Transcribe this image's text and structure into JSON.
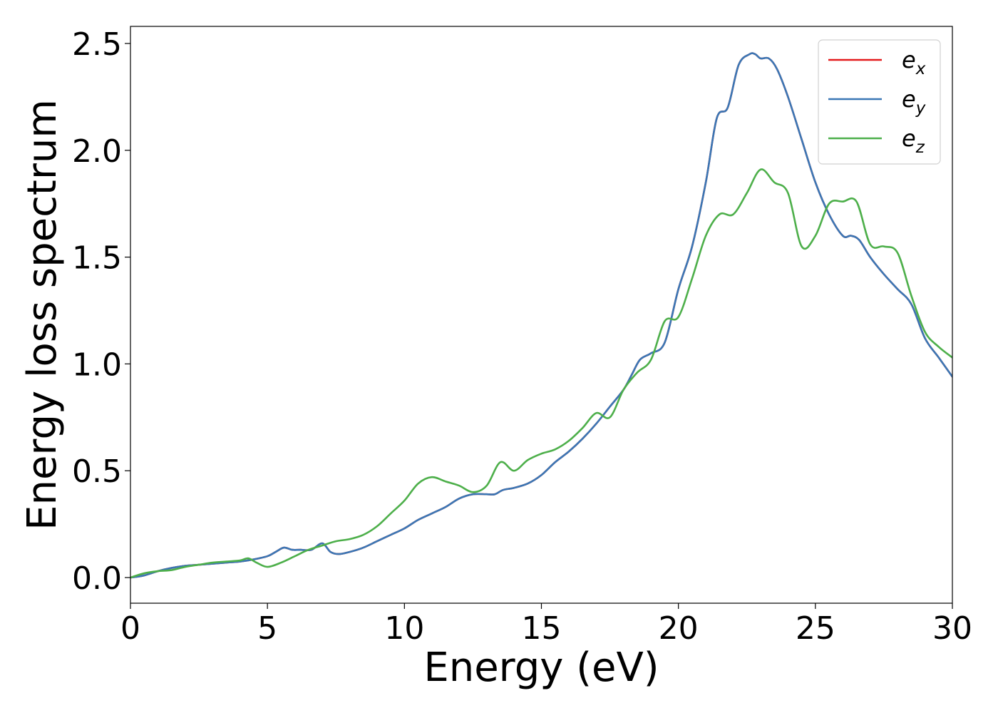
{
  "chart_data": {
    "type": "line",
    "title": "",
    "xlabel": "Energy (eV)",
    "ylabel": "Energy loss spectrum",
    "xlim": [
      0,
      30
    ],
    "ylim": [
      -0.12,
      2.58
    ],
    "xticks": [
      0,
      5,
      10,
      15,
      20,
      25,
      30
    ],
    "yticks": [
      0.0,
      0.5,
      1.0,
      1.5,
      2.0,
      2.5
    ],
    "xtick_labels": [
      "0",
      "5",
      "10",
      "15",
      "20",
      "25",
      "30"
    ],
    "ytick_labels": [
      "0.0",
      "0.5",
      "1.0",
      "1.5",
      "2.0",
      "2.5"
    ],
    "grid": false,
    "legend_position": "top-right",
    "series": [
      {
        "name": "e_x",
        "color": "#e41a1c",
        "x": [
          0,
          0.5,
          1,
          1.5,
          2,
          2.5,
          3,
          3.5,
          4,
          4.5,
          5,
          5.3,
          5.6,
          5.9,
          6.2,
          6.6,
          7.0,
          7.3,
          7.6,
          8.0,
          8.5,
          9.0,
          9.5,
          10.0,
          10.5,
          11.0,
          11.5,
          12.0,
          12.5,
          13.0,
          13.3,
          13.6,
          14.0,
          14.5,
          15.0,
          15.5,
          16.0,
          16.5,
          17.0,
          17.5,
          18.0,
          18.3,
          18.6,
          19.0,
          19.5,
          20.0,
          20.5,
          21.0,
          21.4,
          21.8,
          22.2,
          22.6,
          22.8,
          23.0,
          23.3,
          23.6,
          24.0,
          24.5,
          25.0,
          25.5,
          26.0,
          26.3,
          26.6,
          27.0,
          27.5,
          28.0,
          28.5,
          29.0,
          29.5,
          30.0
        ],
        "y": [
          0.0,
          0.01,
          0.03,
          0.045,
          0.055,
          0.06,
          0.065,
          0.07,
          0.075,
          0.085,
          0.1,
          0.12,
          0.14,
          0.13,
          0.13,
          0.13,
          0.16,
          0.12,
          0.11,
          0.12,
          0.14,
          0.17,
          0.2,
          0.23,
          0.27,
          0.3,
          0.33,
          0.37,
          0.39,
          0.39,
          0.39,
          0.41,
          0.42,
          0.44,
          0.48,
          0.54,
          0.59,
          0.65,
          0.72,
          0.8,
          0.88,
          0.95,
          1.02,
          1.05,
          1.1,
          1.35,
          1.55,
          1.85,
          2.15,
          2.2,
          2.4,
          2.45,
          2.45,
          2.43,
          2.43,
          2.38,
          2.25,
          2.05,
          1.85,
          1.7,
          1.6,
          1.6,
          1.58,
          1.5,
          1.42,
          1.35,
          1.28,
          1.12,
          1.03,
          0.94
        ]
      },
      {
        "name": "e_y",
        "color": "#3a77b5",
        "x": [
          0,
          0.5,
          1,
          1.5,
          2,
          2.5,
          3,
          3.5,
          4,
          4.5,
          5,
          5.3,
          5.6,
          5.9,
          6.2,
          6.6,
          7.0,
          7.3,
          7.6,
          8.0,
          8.5,
          9.0,
          9.5,
          10.0,
          10.5,
          11.0,
          11.5,
          12.0,
          12.5,
          13.0,
          13.3,
          13.6,
          14.0,
          14.5,
          15.0,
          15.5,
          16.0,
          16.5,
          17.0,
          17.5,
          18.0,
          18.3,
          18.6,
          19.0,
          19.5,
          20.0,
          20.5,
          21.0,
          21.4,
          21.8,
          22.2,
          22.6,
          22.8,
          23.0,
          23.3,
          23.6,
          24.0,
          24.5,
          25.0,
          25.5,
          26.0,
          26.3,
          26.6,
          27.0,
          27.5,
          28.0,
          28.5,
          29.0,
          29.5,
          30.0
        ],
        "y": [
          0.0,
          0.01,
          0.03,
          0.045,
          0.055,
          0.06,
          0.065,
          0.07,
          0.075,
          0.085,
          0.1,
          0.12,
          0.14,
          0.13,
          0.13,
          0.13,
          0.16,
          0.12,
          0.11,
          0.12,
          0.14,
          0.17,
          0.2,
          0.23,
          0.27,
          0.3,
          0.33,
          0.37,
          0.39,
          0.39,
          0.39,
          0.41,
          0.42,
          0.44,
          0.48,
          0.54,
          0.59,
          0.65,
          0.72,
          0.8,
          0.88,
          0.95,
          1.02,
          1.05,
          1.1,
          1.35,
          1.55,
          1.85,
          2.15,
          2.2,
          2.4,
          2.45,
          2.45,
          2.43,
          2.43,
          2.38,
          2.25,
          2.05,
          1.85,
          1.7,
          1.6,
          1.6,
          1.58,
          1.5,
          1.42,
          1.35,
          1.28,
          1.12,
          1.03,
          0.94
        ]
      },
      {
        "name": "e_z",
        "color": "#4daf4a",
        "x": [
          0,
          0.5,
          1,
          1.5,
          2,
          2.5,
          3,
          3.5,
          4,
          4.3,
          4.6,
          5.0,
          5.5,
          6.0,
          6.5,
          7.0,
          7.5,
          8.0,
          8.5,
          9.0,
          9.5,
          10.0,
          10.5,
          11.0,
          11.5,
          12.0,
          12.5,
          13.0,
          13.5,
          14.0,
          14.5,
          15.0,
          15.5,
          16.0,
          16.5,
          17.0,
          17.5,
          18.0,
          18.5,
          19.0,
          19.5,
          20.0,
          20.5,
          21.0,
          21.5,
          22.0,
          22.5,
          23.0,
          23.5,
          24.0,
          24.5,
          25.0,
          25.5,
          26.0,
          26.5,
          27.0,
          27.5,
          28.0,
          28.5,
          29.0,
          29.5,
          30.0
        ],
        "y": [
          0.0,
          0.02,
          0.03,
          0.035,
          0.05,
          0.06,
          0.07,
          0.075,
          0.08,
          0.09,
          0.07,
          0.05,
          0.07,
          0.1,
          0.13,
          0.15,
          0.17,
          0.18,
          0.2,
          0.24,
          0.3,
          0.36,
          0.44,
          0.47,
          0.45,
          0.43,
          0.4,
          0.43,
          0.54,
          0.5,
          0.55,
          0.58,
          0.6,
          0.64,
          0.7,
          0.77,
          0.75,
          0.88,
          0.96,
          1.02,
          1.2,
          1.22,
          1.4,
          1.6,
          1.7,
          1.7,
          1.8,
          1.91,
          1.85,
          1.8,
          1.55,
          1.6,
          1.75,
          1.76,
          1.76,
          1.56,
          1.55,
          1.52,
          1.32,
          1.15,
          1.08,
          1.03
        ]
      }
    ],
    "legend": [
      {
        "base": "e",
        "sub": "x",
        "color": "#e41a1c"
      },
      {
        "base": "e",
        "sub": "y",
        "color": "#3a77b5"
      },
      {
        "base": "e",
        "sub": "z",
        "color": "#4daf4a"
      }
    ]
  }
}
